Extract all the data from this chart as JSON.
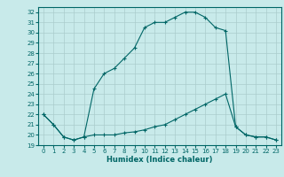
{
  "title": "",
  "xlabel": "Humidex (Indice chaleur)",
  "ylabel": "",
  "bg_color": "#c8eaea",
  "grid_color": "#aacccc",
  "line_color": "#006666",
  "spine_color": "#006666",
  "xlim": [
    -0.5,
    23.5
  ],
  "ylim": [
    19,
    32.5
  ],
  "xticks": [
    0,
    1,
    2,
    3,
    4,
    5,
    6,
    7,
    8,
    9,
    10,
    11,
    12,
    13,
    14,
    15,
    16,
    17,
    18,
    19,
    20,
    21,
    22,
    23
  ],
  "yticks": [
    19,
    20,
    21,
    22,
    23,
    24,
    25,
    26,
    27,
    28,
    29,
    30,
    31,
    32
  ],
  "series1_x": [
    0,
    1,
    2,
    3,
    4,
    5,
    6,
    7,
    8,
    9,
    10,
    11,
    12,
    13,
    14,
    15,
    16,
    17,
    18,
    19,
    20,
    21,
    22,
    23
  ],
  "series1_y": [
    22.0,
    21.0,
    19.8,
    19.5,
    19.8,
    24.5,
    26.0,
    26.5,
    27.5,
    28.5,
    30.5,
    31.0,
    31.0,
    31.5,
    32.0,
    32.0,
    31.5,
    30.5,
    30.2,
    20.8,
    20.0,
    19.8,
    19.8,
    19.5
  ],
  "series2_x": [
    0,
    1,
    2,
    3,
    4,
    5,
    6,
    7,
    8,
    9,
    10,
    11,
    12,
    13,
    14,
    15,
    16,
    17,
    18,
    19,
    20,
    21,
    22,
    23
  ],
  "series2_y": [
    22.0,
    21.0,
    19.8,
    19.5,
    19.8,
    20.0,
    20.0,
    20.0,
    20.2,
    20.3,
    20.5,
    20.8,
    21.0,
    21.5,
    22.0,
    22.5,
    23.0,
    23.5,
    24.0,
    20.8,
    20.0,
    19.8,
    19.8,
    19.5
  ],
  "tick_fontsize": 5.0,
  "xlabel_fontsize": 6.0,
  "marker_size": 2.5,
  "line_width": 0.8
}
